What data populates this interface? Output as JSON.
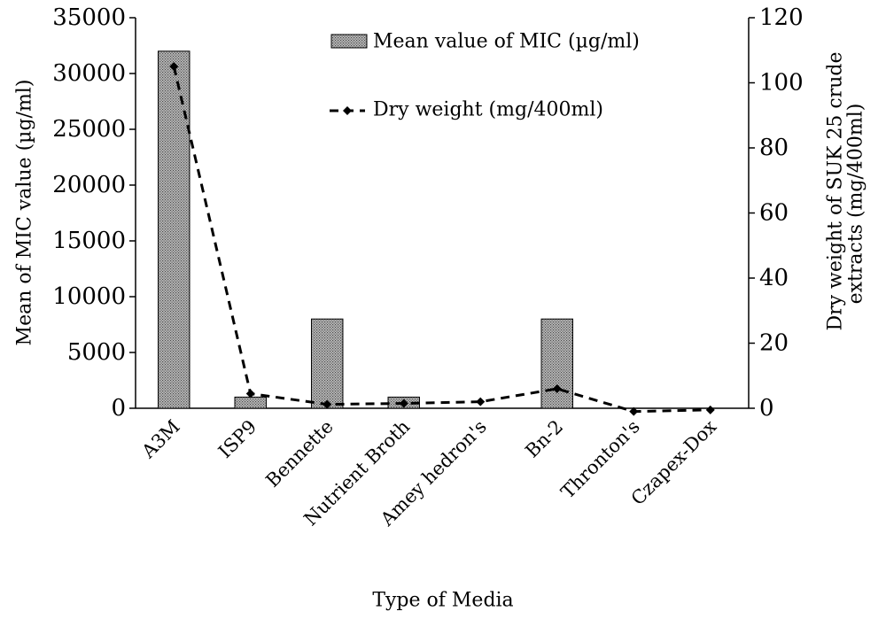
{
  "chart_data": {
    "type": "bar",
    "categories": [
      "A3M",
      "ISP9",
      "Bennette",
      "Nutrient Broth",
      "Amey hedron's",
      "Bn-2",
      "Thronton's",
      "Czapex-Dox"
    ],
    "series": [
      {
        "name": "Mean value of  MIC (µg/ml)",
        "type": "bar",
        "axis": "left",
        "values": [
          32000,
          1000,
          8000,
          1000,
          0,
          8000,
          0,
          0
        ]
      },
      {
        "name": "Dry weight (mg/400ml)",
        "type": "line",
        "axis": "right",
        "style": "dashed",
        "marker": "diamond",
        "values": [
          105,
          4.5,
          1.2,
          1.5,
          2,
          6,
          -1,
          -0.5
        ]
      }
    ],
    "xlabel": "Type of Media",
    "ylabel": "Mean of MIC value (µg/ml)",
    "y2label": [
      "Dry weight of SUK 25 crude",
      "extracts (mg/400ml)"
    ],
    "ylim": [
      0,
      35000
    ],
    "y2lim": [
      0,
      120
    ],
    "yticks": [
      "0",
      "5000",
      "10000",
      "15000",
      "20000",
      "25000",
      "30000",
      "35000"
    ],
    "y2ticks": [
      "0",
      "20",
      "40",
      "60",
      "80",
      "100",
      "120"
    ],
    "grid": false,
    "legend_position": "top-center"
  }
}
